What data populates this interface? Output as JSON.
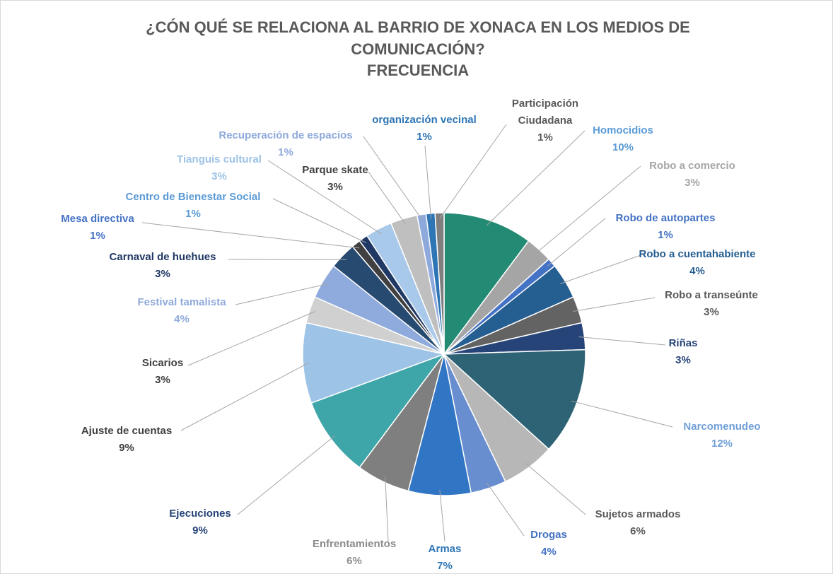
{
  "chart_data": {
    "type": "pie",
    "title": "¿CÓN QUÉ SE RELACIONA AL BARRIO DE XONACA EN LOS MEDIOS DE COMUNICACIÓN?",
    "subtitle": "FRECUENCIA",
    "categories": [
      "Homocidios",
      "Robo a comercio",
      "Robo de autopartes",
      "Robo a cuentahabiente",
      "Robo a transeúnte",
      "Riñas",
      "Narcomenudeo",
      "Sujetos armados",
      "Drogas",
      "Armas",
      "Enfrentamientos",
      "Ejecuciones",
      "Ajuste de cuentas",
      "Sicarios",
      "Festival tamalista",
      "Carnaval de huehues",
      "Mesa directiva",
      "Centro de Bienestar Social",
      "Tianguis cultural",
      "Parque skate",
      "Recuperación de espacios",
      "organización vecinal",
      "Participación Ciudadana"
    ],
    "values": [
      10,
      3,
      1,
      4,
      3,
      3,
      12,
      6,
      4,
      7,
      6,
      9,
      9,
      3,
      4,
      3,
      1,
      1,
      3,
      3,
      1,
      1,
      1
    ],
    "value_labels": [
      "10%",
      "3%",
      "1%",
      "4%",
      "3%",
      "3%",
      "12%",
      "6%",
      "4%",
      "7%",
      "6%",
      "9%",
      "9%",
      "3%",
      "4%",
      "3%",
      "1%",
      "1%",
      "3%",
      "3%",
      "1%",
      "1%",
      "1%"
    ],
    "colors": [
      "#238a73",
      "#a5a5a5",
      "#4472c4",
      "#255e91",
      "#636363",
      "#264478",
      "#2e6275",
      "#b7b7b7",
      "#698ed0",
      "#3076c4",
      "#7f7f7f",
      "#3ea5a8",
      "#9dc3e6",
      "#d0d0d0",
      "#8faadc",
      "#264a70",
      "#404040",
      "#203864",
      "#a9c9ea",
      "#bfbfbf",
      "#8ea9db",
      "#2e75b6",
      "#7f7f7f"
    ],
    "label_colors": [
      "#5b9bd5",
      "#a5a5a5",
      "#4472c4",
      "#255e91",
      "#595959",
      "#264478",
      "#6f9fd8",
      "#595959",
      "#4472c4",
      "#2e75b6",
      "#8c8c8c",
      "#264478",
      "#404040",
      "#404040",
      "#8faadc",
      "#203864",
      "#4472c4",
      "#5b9bd5",
      "#9dc3e6",
      "#404040",
      "#8ea9db",
      "#2e75b6",
      "#595959"
    ]
  }
}
